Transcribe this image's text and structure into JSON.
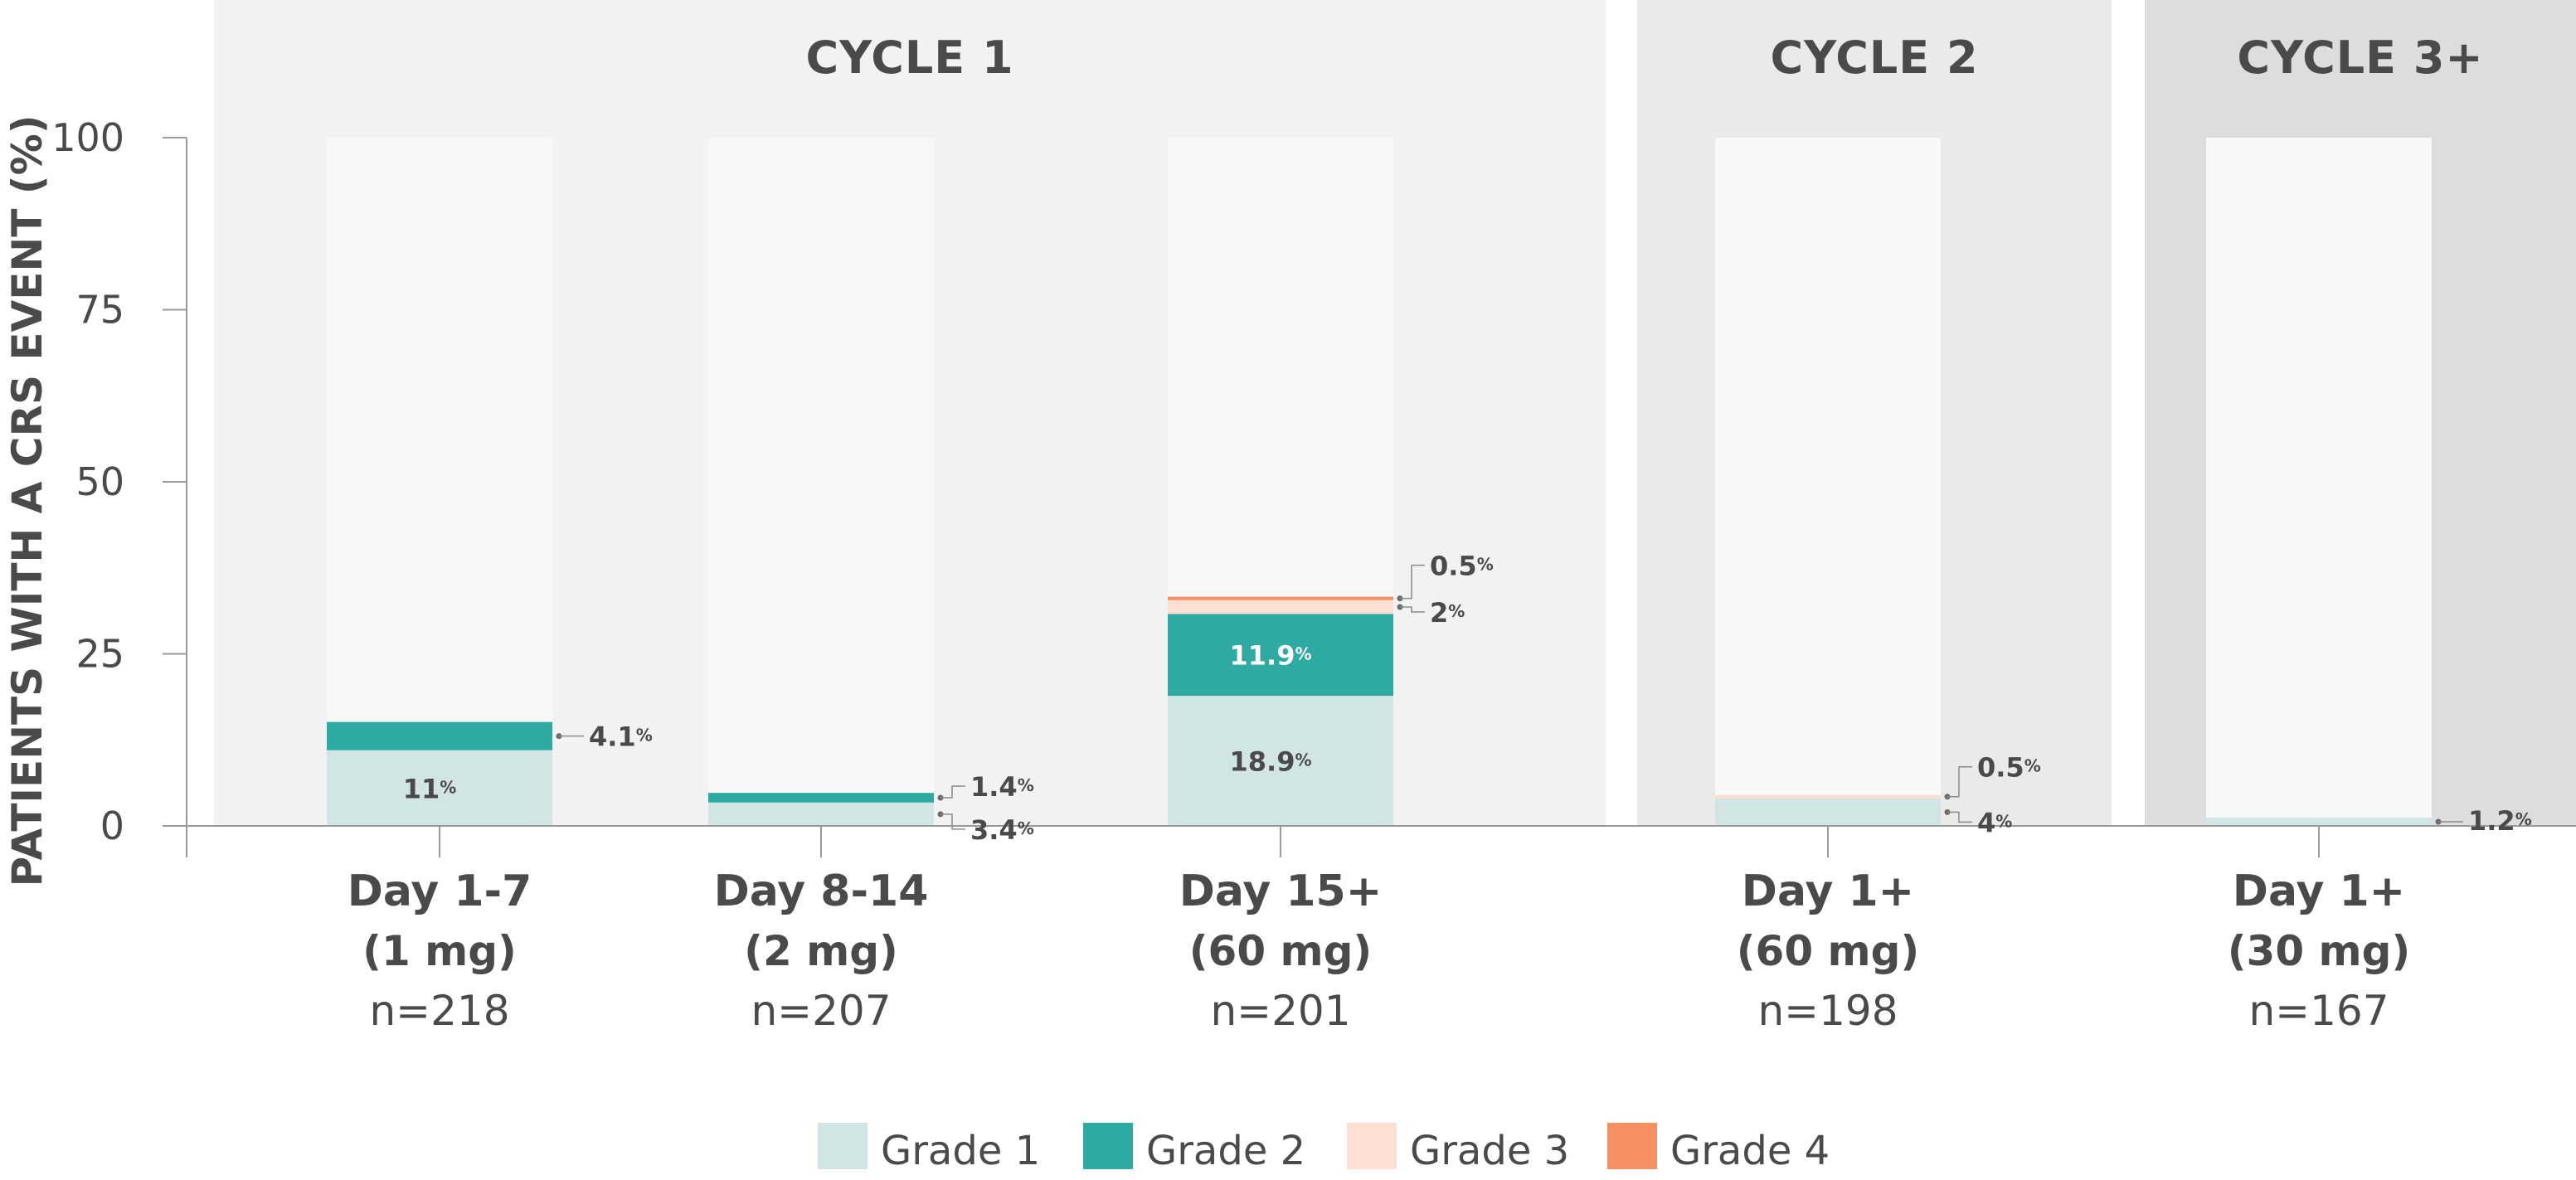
{
  "colors": {
    "grade1": "#d1e6e4",
    "grade2": "#2eaaa3",
    "grade3": "#fde0d3",
    "grade4": "#f69060",
    "track": "#f8f8f8",
    "cycle1_bg": "#f2f2f2",
    "cycle2_bg": "#e9eaea",
    "cycle3_bg": "#dcdddf",
    "text": "#4a4a4a"
  },
  "chart_data": {
    "type": "bar",
    "stacked": true,
    "ylabel": "PATIENTS WITH A CRS EVENT (%)",
    "xlabel": "",
    "ylim": [
      0,
      100
    ],
    "yticks": [
      0,
      25,
      50,
      75,
      100
    ],
    "grid": false,
    "legend_position": "bottom-center",
    "groups": [
      {
        "label": "CYCLE 1",
        "categories": [
          0,
          1,
          2
        ]
      },
      {
        "label": "CYCLE 2",
        "categories": [
          3
        ]
      },
      {
        "label": "CYCLE 3+",
        "categories": [
          4
        ]
      }
    ],
    "categories": [
      {
        "name": "Day 1-7",
        "dose": "(1 mg)",
        "n": "n=218"
      },
      {
        "name": "Day 8-14",
        "dose": "(2 mg)",
        "n": "n=207"
      },
      {
        "name": "Day 15+",
        "dose": "(60 mg)",
        "n": "n=201"
      },
      {
        "name": "Day 1+",
        "dose": "(60 mg)",
        "n": "n=198"
      },
      {
        "name": "Day 1+",
        "dose": "(30 mg)",
        "n": "n=167"
      }
    ],
    "series": [
      {
        "name": "Grade 1",
        "color_key": "grade1",
        "values": [
          11,
          3.4,
          18.9,
          4,
          1.2
        ]
      },
      {
        "name": "Grade 2",
        "color_key": "grade2",
        "values": [
          4.1,
          1.4,
          11.9,
          0,
          0
        ]
      },
      {
        "name": "Grade 3",
        "color_key": "grade3",
        "values": [
          0,
          0,
          2,
          0.5,
          0
        ]
      },
      {
        "name": "Grade 4",
        "color_key": "grade4",
        "values": [
          0,
          0,
          0.5,
          0,
          0
        ]
      }
    ],
    "data_labels": [
      {
        "category": 0,
        "series": 0,
        "text": "11",
        "placement": "inside"
      },
      {
        "category": 0,
        "series": 1,
        "text": "4.1",
        "placement": "outside"
      },
      {
        "category": 1,
        "series": 0,
        "text": "3.4",
        "placement": "outside"
      },
      {
        "category": 1,
        "series": 1,
        "text": "1.4",
        "placement": "outside"
      },
      {
        "category": 2,
        "series": 0,
        "text": "18.9",
        "placement": "inside"
      },
      {
        "category": 2,
        "series": 1,
        "text": "11.9",
        "placement": "inside"
      },
      {
        "category": 2,
        "series": 2,
        "text": "2",
        "placement": "outside"
      },
      {
        "category": 2,
        "series": 3,
        "text": "0.5",
        "placement": "outside"
      },
      {
        "category": 3,
        "series": 0,
        "text": "4",
        "placement": "outside"
      },
      {
        "category": 3,
        "series": 2,
        "text": "0.5",
        "placement": "outside"
      },
      {
        "category": 4,
        "series": 0,
        "text": "1.2",
        "placement": "outside"
      }
    ],
    "percent_sign": "%"
  }
}
